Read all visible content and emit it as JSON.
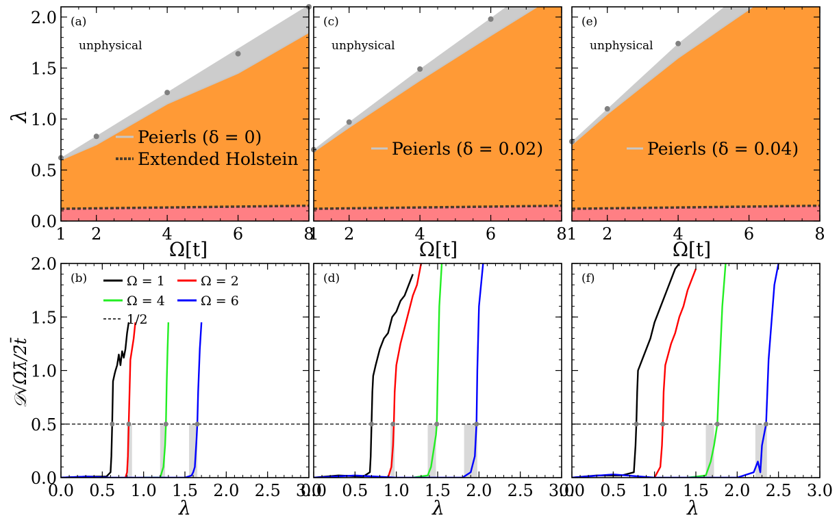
{
  "figure": {
    "x_axis_top": "Ω[t]",
    "y_axis_top": "λ",
    "x_axis_bottom": "λ",
    "y_axis_bottom": "𝒟√Ω̄λ̄/2̄t̄"
  },
  "colors": {
    "unphysical": "#cccccc",
    "orange": "#ff9a36",
    "pink": "#ff7f84",
    "boundary_line": "#c7c7c7",
    "holstein": "#4a3b2a",
    "marker": "#808080",
    "omega1": "#000000",
    "omega2": "#ff0000",
    "omega4": "#22ee22",
    "omega6": "#0000ff",
    "band": "#d9d9d9"
  },
  "chart_data": [
    {
      "type": "area",
      "panel": "(a)",
      "region_label": "unphysical",
      "xlim": [
        1,
        8
      ],
      "ylim": [
        0,
        2.1
      ],
      "xticks": [
        1,
        2,
        4,
        6,
        8
      ],
      "yticks": [
        0.0,
        0.5,
        1.0,
        1.5,
        2.0
      ],
      "legend": [
        "Peierls (δ = 0)",
        "Extended Holstein"
      ],
      "upper_boundary": {
        "x": [
          1,
          8
        ],
        "y": [
          0.62,
          2.12
        ]
      },
      "peierls_line": {
        "x": [
          1,
          2,
          4,
          6,
          8
        ],
        "y": [
          0.6,
          0.75,
          1.15,
          1.45,
          1.85
        ]
      },
      "holstein_line": {
        "x": [
          1,
          8
        ],
        "y": [
          0.12,
          0.15
        ]
      },
      "markers": {
        "x": [
          1,
          2,
          4,
          6,
          8
        ],
        "y": [
          0.62,
          0.83,
          1.26,
          1.64,
          2.1
        ]
      }
    },
    {
      "type": "area",
      "panel": "(c)",
      "region_label": "unphysical",
      "xlim": [
        1,
        8
      ],
      "ylim": [
        0,
        2.1
      ],
      "xticks": [
        1,
        2,
        4,
        6,
        8
      ],
      "yticks": [
        0.0,
        0.5,
        1.0,
        1.5,
        2.0
      ],
      "legend": [
        "Peierls (δ = 0.02)"
      ],
      "upper_boundary": {
        "x": [
          1,
          2,
          4,
          6,
          8
        ],
        "y": [
          0.7,
          0.97,
          1.49,
          1.99,
          2.5
        ]
      },
      "peierls_line": {
        "x": [
          1,
          2,
          4,
          6,
          7.3
        ],
        "y": [
          0.68,
          0.92,
          1.38,
          1.82,
          2.1
        ]
      },
      "holstein_line": {
        "x": [
          1,
          8
        ],
        "y": [
          0.12,
          0.15
        ]
      },
      "markers": {
        "x": [
          1,
          2,
          4,
          6
        ],
        "y": [
          0.7,
          0.97,
          1.49,
          1.98
        ]
      }
    },
    {
      "type": "area",
      "panel": "(e)",
      "region_label": "unphysical",
      "xlim": [
        1,
        8
      ],
      "ylim": [
        0,
        2.1
      ],
      "xticks": [
        1,
        2,
        4,
        6,
        8
      ],
      "yticks": [
        0.0,
        0.5,
        1.0,
        1.5,
        2.0
      ],
      "legend": [
        "Peierls (δ = 0.04)"
      ],
      "upper_boundary": {
        "x": [
          1,
          2,
          4,
          5.3
        ],
        "y": [
          0.78,
          1.1,
          1.74,
          2.1
        ]
      },
      "peierls_line": {
        "x": [
          1,
          2,
          4,
          6.1
        ],
        "y": [
          0.75,
          1.05,
          1.6,
          2.1
        ]
      },
      "holstein_line": {
        "x": [
          1,
          8
        ],
        "y": [
          0.12,
          0.15
        ]
      },
      "markers": {
        "x": [
          1,
          2,
          4
        ],
        "y": [
          0.78,
          1.1,
          1.74
        ]
      }
    },
    {
      "type": "line",
      "panel": "(b)",
      "xlim": [
        0,
        3
      ],
      "ylim": [
        0,
        2
      ],
      "xticks": [
        0.0,
        0.5,
        1.0,
        1.5,
        2.0,
        2.5,
        3.0
      ],
      "yticks": [
        0.0,
        0.5,
        1.0,
        1.5,
        2.0
      ],
      "legend": [
        "Ω = 1",
        "Ω = 2",
        "Ω = 4",
        "Ω = 6",
        "1/2"
      ],
      "reference": 0.5,
      "bands": [
        [
          0.8,
          0.86
        ],
        [
          1.2,
          1.26
        ],
        [
          1.55,
          1.65
        ]
      ],
      "crossings": [
        0.62,
        0.82,
        1.27,
        1.65
      ],
      "series": [
        {
          "name": "Ω = 1",
          "color_key": "omega1",
          "x": [
            0.0,
            0.3,
            0.55,
            0.6,
            0.61,
            0.62,
            0.63,
            0.65,
            0.66,
            0.68,
            0.7,
            0.72,
            0.74,
            0.76,
            0.78,
            0.8,
            0.82
          ],
          "y": [
            0.0,
            0.01,
            0.01,
            0.05,
            0.2,
            0.5,
            0.9,
            0.97,
            1.0,
            1.05,
            1.15,
            1.05,
            1.18,
            1.12,
            1.2,
            1.35,
            1.45
          ]
        },
        {
          "name": "Ω = 2",
          "color_key": "omega2",
          "x": [
            0.78,
            0.8,
            0.81,
            0.82,
            0.83,
            0.84,
            0.86,
            0.88,
            0.9
          ],
          "y": [
            0.0,
            0.05,
            0.2,
            0.5,
            0.8,
            1.1,
            1.2,
            1.3,
            1.45
          ]
        },
        {
          "name": "Ω = 4",
          "color_key": "omega4",
          "x": [
            1.0,
            1.2,
            1.22,
            1.24,
            1.26,
            1.27,
            1.28,
            1.29,
            1.3
          ],
          "y": [
            0.0,
            0.0,
            0.05,
            0.1,
            0.3,
            0.5,
            0.9,
            1.2,
            1.45
          ]
        },
        {
          "name": "Ω = 6",
          "color_key": "omega6",
          "x": [
            0.0,
            0.3,
            0.6,
            1.0,
            1.5,
            1.58,
            1.6,
            1.62,
            1.64,
            1.65,
            1.66,
            1.68,
            1.7
          ],
          "y": [
            0.0,
            0.01,
            0.0,
            0.0,
            0.0,
            0.02,
            0.05,
            0.1,
            0.35,
            0.5,
            0.8,
            1.2,
            1.45
          ]
        }
      ]
    },
    {
      "type": "line",
      "panel": "(d)",
      "xlim": [
        0,
        3
      ],
      "ylim": [
        0,
        2
      ],
      "xticks": [
        0.0,
        0.5,
        1.0,
        1.5,
        2.0,
        2.5,
        3.0
      ],
      "yticks": [
        0.0,
        0.5,
        1.0,
        1.5,
        2.0
      ],
      "legend": [],
      "reference": 0.5,
      "bands": [
        [
          0.93,
          0.98
        ],
        [
          1.38,
          1.48
        ],
        [
          1.82,
          1.98
        ]
      ],
      "crossings": [
        0.7,
        0.96,
        1.49,
        1.97
      ],
      "series": [
        {
          "name": "Ω = 1",
          "color_key": "omega1",
          "x": [
            0.0,
            0.3,
            0.6,
            0.68,
            0.69,
            0.7,
            0.71,
            0.72,
            0.75,
            0.8,
            0.85,
            0.9,
            0.95,
            1.0,
            1.05,
            1.1,
            1.15,
            1.2
          ],
          "y": [
            0.0,
            0.02,
            0.01,
            0.05,
            0.2,
            0.5,
            0.8,
            0.95,
            1.05,
            1.2,
            1.3,
            1.35,
            1.5,
            1.55,
            1.65,
            1.7,
            1.8,
            1.9
          ]
        },
        {
          "name": "Ω = 2",
          "color_key": "omega2",
          "x": [
            0.9,
            0.94,
            0.96,
            0.97,
            0.98,
            1.0,
            1.05,
            1.1,
            1.15,
            1.2,
            1.25,
            1.3
          ],
          "y": [
            0.0,
            0.1,
            0.3,
            0.5,
            0.8,
            1.05,
            1.25,
            1.4,
            1.55,
            1.7,
            1.8,
            2.0
          ]
        },
        {
          "name": "Ω = 4",
          "color_key": "omega4",
          "x": [
            1.2,
            1.38,
            1.42,
            1.45,
            1.48,
            1.49,
            1.5,
            1.52,
            1.55
          ],
          "y": [
            0.0,
            0.02,
            0.1,
            0.25,
            0.4,
            0.5,
            0.9,
            1.6,
            2.0
          ]
        },
        {
          "name": "Ω = 6",
          "color_key": "omega6",
          "x": [
            0.0,
            0.5,
            1.0,
            1.5,
            1.8,
            1.9,
            1.95,
            1.97,
            1.98,
            2.0,
            2.05
          ],
          "y": [
            0.0,
            0.02,
            0.0,
            0.0,
            0.0,
            0.05,
            0.2,
            0.5,
            1.0,
            1.6,
            2.0
          ]
        }
      ]
    },
    {
      "type": "line",
      "panel": "(f)",
      "xlim": [
        0,
        3
      ],
      "ylim": [
        0,
        2
      ],
      "xticks": [
        0.0,
        0.5,
        1.0,
        1.5,
        2.0,
        2.5,
        3.0
      ],
      "yticks": [
        0.0,
        0.5,
        1.0,
        1.5,
        2.0
      ],
      "legend": [],
      "reference": 0.5,
      "bands": [
        [
          1.62,
          1.72
        ],
        [
          2.22,
          2.36
        ]
      ],
      "crossings": [
        0.78,
        1.1,
        1.76,
        2.35
      ],
      "series": [
        {
          "name": "Ω = 1",
          "color_key": "omega1",
          "x": [
            0.0,
            0.3,
            0.6,
            0.75,
            0.77,
            0.78,
            0.79,
            0.8,
            0.85,
            0.9,
            0.95,
            1.0,
            1.05,
            1.1,
            1.15,
            1.2,
            1.25,
            1.3
          ],
          "y": [
            0.0,
            0.02,
            0.02,
            0.05,
            0.3,
            0.5,
            0.8,
            1.0,
            1.1,
            1.2,
            1.3,
            1.45,
            1.55,
            1.65,
            1.75,
            1.85,
            1.95,
            2.0
          ]
        },
        {
          "name": "Ω = 2",
          "color_key": "omega2",
          "x": [
            1.0,
            1.07,
            1.09,
            1.1,
            1.11,
            1.13,
            1.2,
            1.25,
            1.3,
            1.35,
            1.4,
            1.45,
            1.5
          ],
          "y": [
            0.0,
            0.1,
            0.3,
            0.5,
            0.8,
            1.05,
            1.25,
            1.35,
            1.5,
            1.6,
            1.75,
            1.85,
            1.95
          ]
        },
        {
          "name": "Ω = 4",
          "color_key": "omega4",
          "x": [
            1.4,
            1.62,
            1.68,
            1.72,
            1.75,
            1.76,
            1.78,
            1.82,
            1.86
          ],
          "y": [
            0.0,
            0.02,
            0.15,
            0.3,
            0.45,
            0.5,
            0.9,
            1.6,
            2.0
          ]
        },
        {
          "name": "Ω = 6",
          "color_key": "omega6",
          "x": [
            0.0,
            0.5,
            1.0,
            1.5,
            2.0,
            2.2,
            2.25,
            2.28,
            2.3,
            2.35,
            2.38,
            2.4,
            2.45,
            2.5
          ],
          "y": [
            0.0,
            0.03,
            0.0,
            0.0,
            0.0,
            0.05,
            0.15,
            0.05,
            0.3,
            0.5,
            1.1,
            1.3,
            1.8,
            2.0
          ]
        }
      ]
    }
  ]
}
